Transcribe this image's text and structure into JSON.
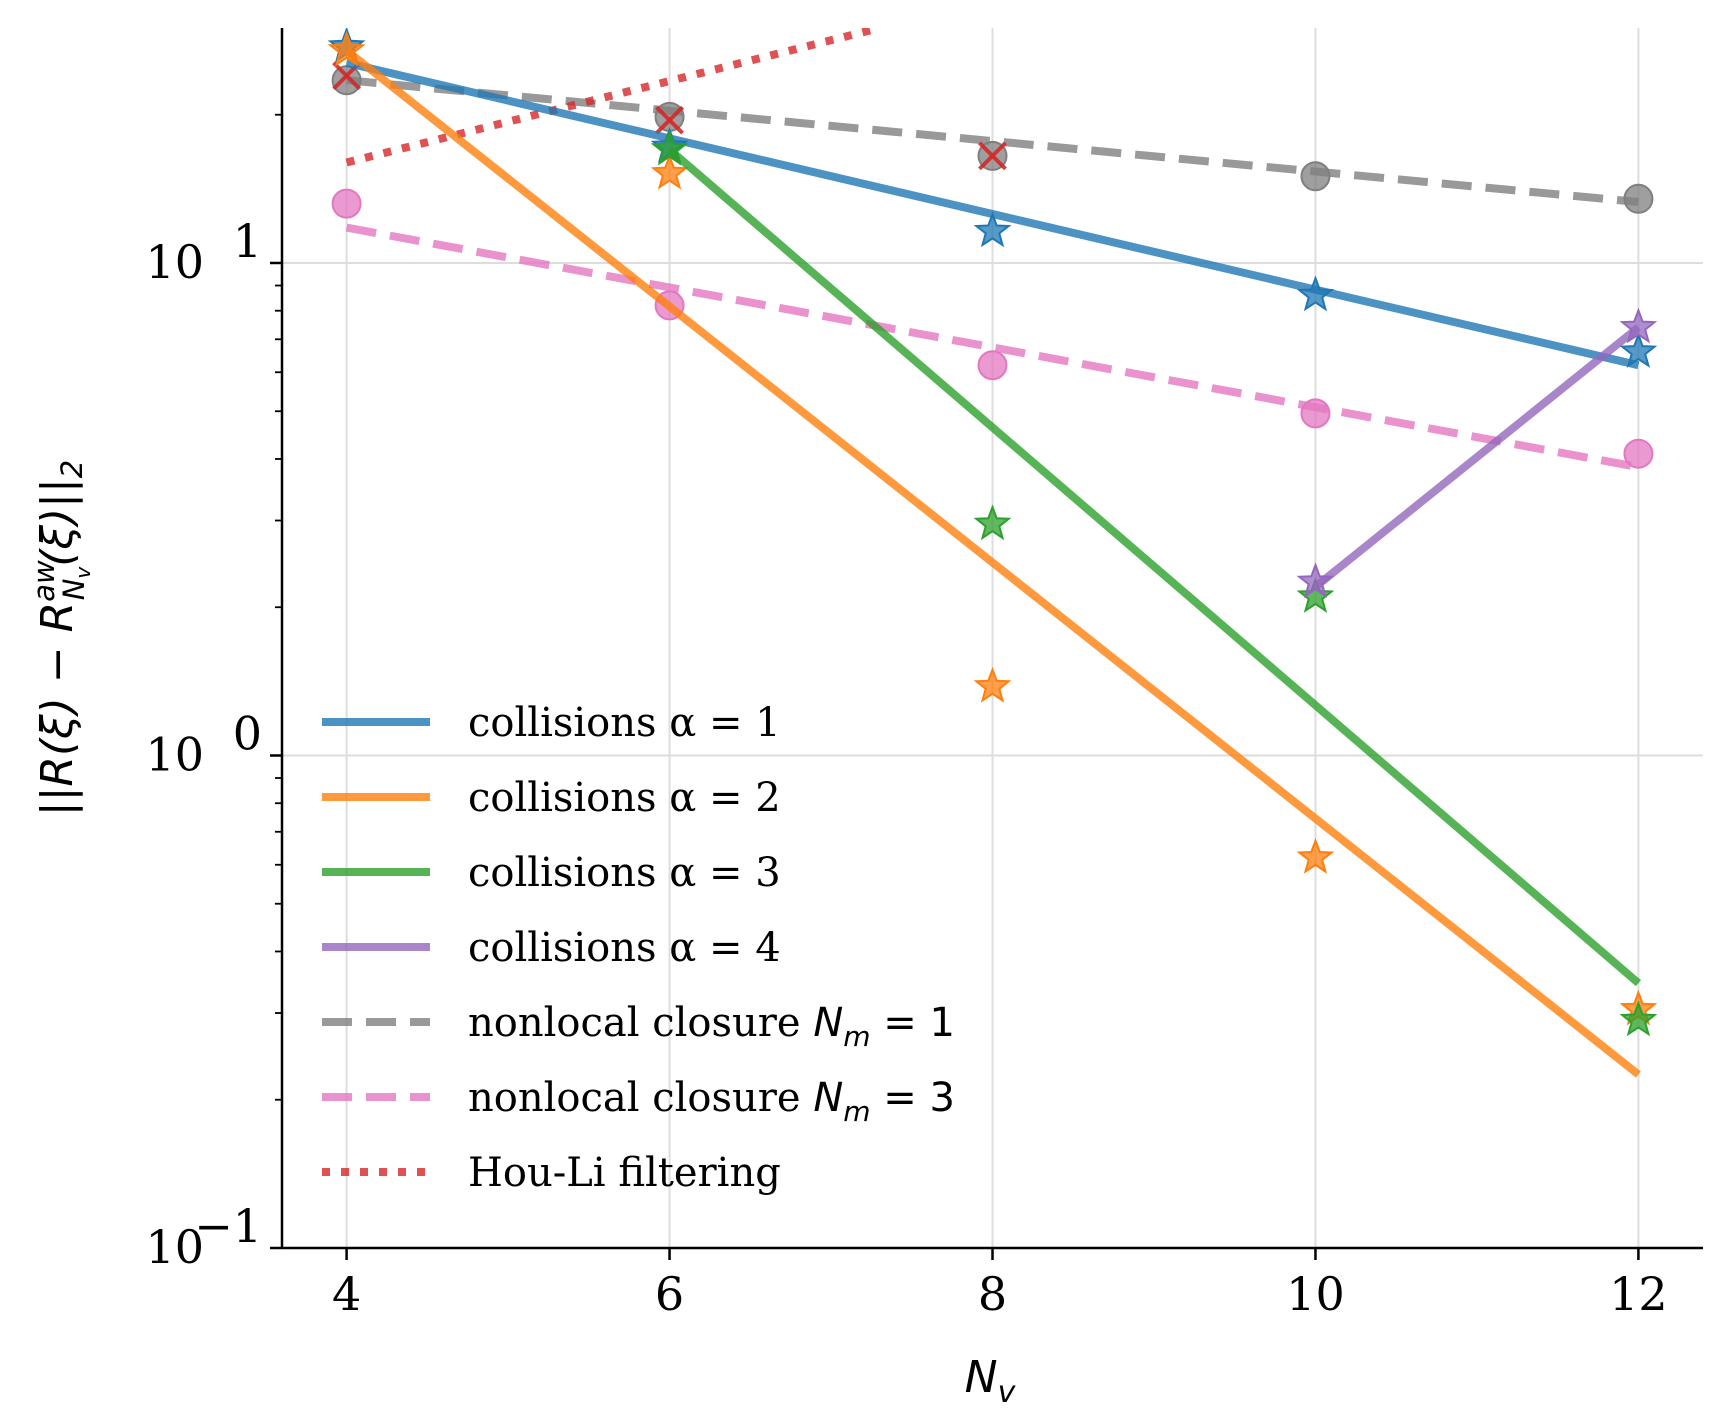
{
  "chart_data": {
    "type": "line",
    "xlabel": "N_v",
    "xlabel_parts": {
      "base": "N",
      "sub": "v"
    },
    "ylabel": "||R(ξ) − R^{aw}_{N_v}(ξ)||_2",
    "ylabel_parts": {
      "left": "||R(ξ) − R",
      "sup": "aw",
      "sub": "N",
      "subsub": "v",
      "right": "(ξ)||",
      "tail": "2"
    },
    "yscale": "log",
    "xlim": [
      3.6,
      12.4
    ],
    "ylim": [
      0.1,
      30
    ],
    "x_ticks": [
      4,
      6,
      8,
      10,
      12
    ],
    "y_ticks": [
      {
        "value": 10,
        "base": "10",
        "exp": "1"
      },
      {
        "value": 1,
        "base": "10",
        "exp": "0"
      },
      {
        "value": 0.1,
        "base": "10",
        "exp": "−1"
      }
    ],
    "grid": true,
    "legend_position": "lower-left",
    "series": [
      {
        "name": "collisions α = 1",
        "color": "#1f77b4",
        "line_style": "solid",
        "marker": "star",
        "line": {
          "x": [
            4,
            12
          ],
          "y": [
            25.5,
            6.2
          ]
        },
        "points": {
          "x": [
            4,
            6,
            8,
            10,
            12
          ],
          "y": [
            27.5,
            17.2,
            11.6,
            8.6,
            6.6
          ]
        }
      },
      {
        "name": "collisions α = 2",
        "color": "#ff7f0e",
        "line_style": "solid",
        "marker": "star",
        "line": {
          "x": [
            4,
            12
          ],
          "y": [
            27.0,
            0.225
          ]
        },
        "points": {
          "x": [
            4,
            6,
            8,
            10,
            12
          ],
          "y": [
            27.0,
            15.2,
            1.38,
            0.62,
            0.305
          ]
        }
      },
      {
        "name": "collisions α = 3",
        "color": "#2ca02c",
        "line_style": "solid",
        "marker": "star",
        "line": {
          "x": [
            6,
            12
          ],
          "y": [
            17.0,
            0.345
          ]
        },
        "points": {
          "x": [
            6,
            8,
            10,
            12
          ],
          "y": [
            17.0,
            2.95,
            2.1,
            0.29
          ]
        }
      },
      {
        "name": "collisions α = 4",
        "color": "#9467bd",
        "line_style": "solid",
        "marker": "star",
        "line": {
          "x": [
            10,
            12
          ],
          "y": [
            2.2,
            7.4
          ]
        },
        "points": {
          "x": [
            10,
            12
          ],
          "y": [
            2.25,
            7.4
          ]
        }
      },
      {
        "name": "nonlocal closure N_m = 1",
        "name_parts": {
          "text": "nonlocal closure ",
          "base": "N",
          "sub": "m",
          "eq": " = 1"
        },
        "color": "#7f7f7f",
        "line_style": "dashed",
        "marker": "circle",
        "line": {
          "x": [
            4,
            12
          ],
          "y": [
            23.5,
            13.3
          ]
        },
        "points": {
          "x": [
            4,
            6,
            8,
            10,
            12
          ],
          "y": [
            23.5,
            19.8,
            16.5,
            15.0,
            13.5
          ]
        }
      },
      {
        "name": "nonlocal closure N_m = 3",
        "name_parts": {
          "text": "nonlocal closure ",
          "base": "N",
          "sub": "m",
          "eq": " = 3"
        },
        "color": "#e377c2",
        "line_style": "dashed",
        "marker": "circle",
        "line": {
          "x": [
            4,
            12
          ],
          "y": [
            11.8,
            3.85
          ]
        },
        "points": {
          "x": [
            4,
            6,
            8,
            10,
            12
          ],
          "y": [
            13.2,
            8.2,
            6.2,
            4.95,
            4.1
          ]
        }
      },
      {
        "name": "Hou-Li filtering",
        "color": "#d62728",
        "line_style": "dotted",
        "marker": "x",
        "line": {
          "x": [
            4,
            7.3
          ],
          "y": [
            16.0,
            30
          ]
        },
        "points": {
          "x": [
            4,
            6,
            8
          ],
          "y": [
            24.0,
            19.5,
            16.5
          ]
        }
      }
    ]
  }
}
